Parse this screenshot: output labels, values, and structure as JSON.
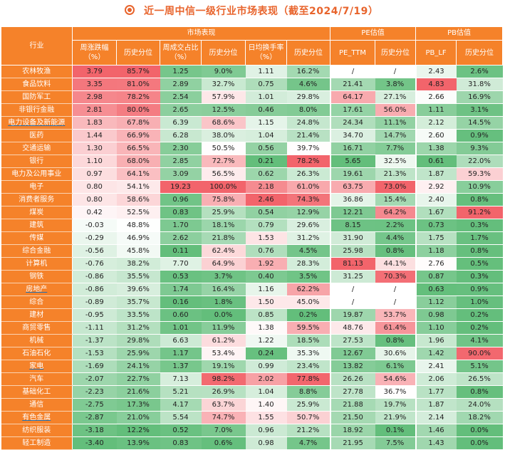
{
  "title": "近一周中信一级行业市场表现（截至2024/7/19）",
  "colors": {
    "accent": "#f5822a",
    "title": "#e8642c"
  },
  "header": {
    "industry": "行业",
    "groups": [
      "市场表现",
      "PE估值",
      "PB估值"
    ],
    "cols": [
      "周涨跌幅（%）",
      "历史分位",
      "周成交占比（%）",
      "历史分位",
      "日均换手率（%）",
      "历史分位",
      "PE_TTM",
      "历史分位",
      "PB_LF",
      "历史分位"
    ]
  },
  "rows": [
    {
      "name": "农林牧渔",
      "vals": [
        "3.79",
        "85.7%",
        "1.25",
        "9.0%",
        "1.11",
        "16.2%",
        "/",
        "/",
        "2.43",
        "2.6%"
      ]
    },
    {
      "name": "食品饮料",
      "vals": [
        "3.35",
        "81.0%",
        "2.89",
        "32.7%",
        "0.75",
        "4.6%",
        "21.41",
        "3.8%",
        "4.83",
        "31.8%"
      ]
    },
    {
      "name": "国防军工",
      "vals": [
        "2.98",
        "78.2%",
        "2.54",
        "57.9%",
        "1.01",
        "29.8%",
        "64.17",
        "27.1%",
        "2.66",
        "16.9%"
      ]
    },
    {
      "name": "非银行金融",
      "vals": [
        "2.81",
        "80.0%",
        "2.65",
        "12.5%",
        "0.46",
        "8.0%",
        "17.61",
        "56.0%",
        "1.11",
        "3.1%"
      ]
    },
    {
      "name": "电力设备及新能源",
      "vals": [
        "1.83",
        "67.8%",
        "6.39",
        "68.6%",
        "1.15",
        "24.8%",
        "24.34",
        "11.1%",
        "2.12",
        "14.5%"
      ]
    },
    {
      "name": "医药",
      "vals": [
        "1.44",
        "66.9%",
        "6.28",
        "38.0%",
        "1.04",
        "21.4%",
        "34.70",
        "14.7%",
        "2.60",
        "0.9%"
      ]
    },
    {
      "name": "交通运输",
      "vals": [
        "1.30",
        "66.5%",
        "2.30",
        "50.5%",
        "0.56",
        "39.7%",
        "16.71",
        "7.7%",
        "1.38",
        "9.3%"
      ]
    },
    {
      "name": "银行",
      "vals": [
        "1.10",
        "68.0%",
        "2.85",
        "72.7%",
        "0.21",
        "78.2%",
        "5.65",
        "32.5%",
        "0.61",
        "22.0%"
      ]
    },
    {
      "name": "电力及公用事业",
      "vals": [
        "0.97",
        "64.1%",
        "3.09",
        "56.5%",
        "0.62",
        "26.3%",
        "19.61",
        "21.3%",
        "1.87",
        "59.3%"
      ]
    },
    {
      "name": "电子",
      "vals": [
        "0.80",
        "54.1%",
        "19.23",
        "100.0%",
        "2.18",
        "61.0%",
        "63.75",
        "73.0%",
        "2.92",
        "10.9%"
      ]
    },
    {
      "name": "消费者服务",
      "vals": [
        "0.80",
        "58.6%",
        "0.96",
        "75.8%",
        "2.46",
        "74.3%",
        "36.86",
        "15.4%",
        "2.40",
        "0.8%"
      ]
    },
    {
      "name": "煤炭",
      "vals": [
        "0.42",
        "52.5%",
        "0.83",
        "25.9%",
        "0.54",
        "12.9%",
        "12.21",
        "64.2%",
        "1.67",
        "91.2%"
      ]
    },
    {
      "name": "建筑",
      "vals": [
        "-0.03",
        "48.8%",
        "1.70",
        "18.1%",
        "0.79",
        "29.6%",
        "8.15",
        "2.2%",
        "0.73",
        "0.3%"
      ]
    },
    {
      "name": "传媒",
      "vals": [
        "-0.29",
        "46.9%",
        "2.62",
        "21.8%",
        "1.53",
        "31.2%",
        "31.90",
        "4.4%",
        "1.75",
        "1.7%"
      ]
    },
    {
      "name": "综合金融",
      "vals": [
        "-0.56",
        "45.8%",
        "0.11",
        "62.4%",
        "0.76",
        "4.5%",
        "25.98",
        "0.8%",
        "1.18",
        "0.8%"
      ]
    },
    {
      "name": "计算机",
      "vals": [
        "-0.76",
        "38.2%",
        "7.70",
        "64.9%",
        "1.92",
        "28.3%",
        "81.13",
        "44.1%",
        "2.76",
        "0.5%"
      ]
    },
    {
      "name": "钢铁",
      "vals": [
        "-0.86",
        "35.5%",
        "0.53",
        "3.7%",
        "0.40",
        "3.5%",
        "31.25",
        "70.3%",
        "0.87",
        "0.3%"
      ]
    },
    {
      "name": "房地产",
      "vals": [
        "-0.86",
        "39.6%",
        "1.74",
        "16.4%",
        "1.16",
        "62.2%",
        "/",
        "/",
        "0.63",
        "0.9%"
      ]
    },
    {
      "name": "综合",
      "vals": [
        "-0.89",
        "35.7%",
        "0.16",
        "1.8%",
        "1.50",
        "45.0%",
        "/",
        "/",
        "1.12",
        "1.0%"
      ]
    },
    {
      "name": "建材",
      "vals": [
        "-0.95",
        "33.5%",
        "0.60",
        "0.0%",
        "0.85",
        "0.2%",
        "19.87",
        "53.7%",
        "0.98",
        "0.2%"
      ]
    },
    {
      "name": "商贸零售",
      "vals": [
        "-1.11",
        "31.2%",
        "1.01",
        "11.9%",
        "1.38",
        "59.5%",
        "48.76",
        "61.4%",
        "1.10",
        "0.2%"
      ]
    },
    {
      "name": "机械",
      "vals": [
        "-1.37",
        "29.8%",
        "6.63",
        "61.2%",
        "1.22",
        "18.5%",
        "27.53",
        "0.8%",
        "1.96",
        "4.1%"
      ]
    },
    {
      "name": "石油石化",
      "vals": [
        "-1.53",
        "25.9%",
        "1.17",
        "53.4%",
        "0.24",
        "35.3%",
        "12.67",
        "30.6%",
        "1.42",
        "90.0%"
      ]
    },
    {
      "name": "家电",
      "vals": [
        "-1.69",
        "24.1%",
        "1.37",
        "19.1%",
        "0.99",
        "23.4%",
        "13.82",
        "6.1%",
        "2.41",
        "5.1%"
      ]
    },
    {
      "name": "汽车",
      "vals": [
        "-2.07",
        "22.7%",
        "7.13",
        "98.2%",
        "2.02",
        "77.8%",
        "26.26",
        "54.6%",
        "2.06",
        "26.5%"
      ]
    },
    {
      "name": "基础化工",
      "vals": [
        "-2.23",
        "21.6%",
        "5.21",
        "26.9%",
        "1.04",
        "8.8%",
        "27.78",
        "36.7%",
        "1.77",
        "0.8%"
      ]
    },
    {
      "name": "通信",
      "vals": [
        "-2.75",
        "17.3%",
        "4.17",
        "63.7%",
        "1.40",
        "25.9%",
        "21.88",
        "19.7%",
        "1.87",
        "24.0%"
      ]
    },
    {
      "name": "有色金属",
      "vals": [
        "-2.87",
        "21.0%",
        "5.54",
        "74.7%",
        "1.55",
        "50.7%",
        "21.50",
        "21.9%",
        "2.14",
        "18.2%"
      ]
    },
    {
      "name": "纺织服装",
      "vals": [
        "-3.18",
        "12.2%",
        "0.52",
        "7.0%",
        "0.96",
        "21.2%",
        "18.92",
        "0.1%",
        "1.46",
        "0.0%"
      ]
    },
    {
      "name": "轻工制造",
      "vals": [
        "-3.40",
        "13.9%",
        "0.83",
        "0.6%",
        "0.98",
        "4.7%",
        "21.95",
        "7.5%",
        "1.43",
        "0.0%"
      ]
    }
  ]
}
